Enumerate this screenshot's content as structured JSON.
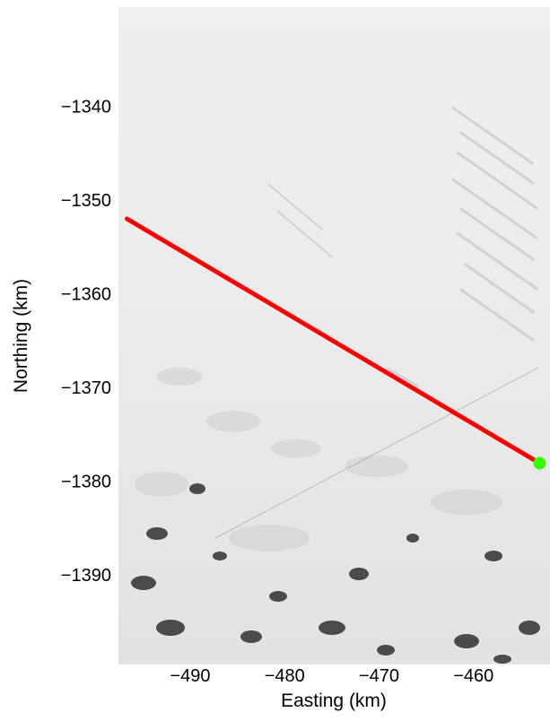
{
  "chart_data": {
    "type": "map",
    "xlabel": "Easting (km)",
    "ylabel": "Northing (km)",
    "xlim": [
      -497.6,
      -451.9
    ],
    "ylim": [
      -1399.6,
      -1329.4
    ],
    "x_ticks": [
      -490,
      -480,
      -470,
      -460
    ],
    "y_ticks": [
      -1390,
      -1380,
      -1370,
      -1360,
      -1350,
      -1340
    ],
    "x_tick_labels": [
      "−490",
      "−480",
      "−470",
      "−460"
    ],
    "y_tick_labels": [
      "−1390",
      "−1380",
      "−1370",
      "−1360",
      "−1350",
      "−1340"
    ],
    "grid": false,
    "basemap": "satellite imagery (snow/ice, rock outcrops at bottom)",
    "track": {
      "color": "#ff0000",
      "points": [
        [
          -496.7,
          -1352.0
        ],
        [
          -453.0,
          -1378.1
        ]
      ]
    },
    "marker": {
      "color": "#33ff00",
      "x": -453.0,
      "y": -1378.1
    }
  }
}
